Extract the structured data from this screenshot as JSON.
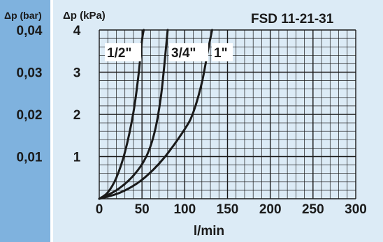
{
  "chart_data": {
    "type": "line",
    "title": "FSD 11-21-31",
    "xlabel": "l/min",
    "ylabel": "Δp (kPa)",
    "secondary_ylabel": "Δp (bar)",
    "xlim": [
      0,
      300
    ],
    "ylim": [
      0,
      4
    ],
    "grid": true,
    "x_ticks": [
      "0",
      "50",
      "100",
      "150",
      "200",
      "250",
      "300"
    ],
    "x_tick_values": [
      0,
      50,
      100,
      150,
      200,
      250,
      300
    ],
    "y_ticks": [
      "1",
      "2",
      "3",
      "4"
    ],
    "y_tick_values": [
      1,
      2,
      3,
      4
    ],
    "secondary_y_ticks": [
      "0,01",
      "0,02",
      "0,03",
      "0,04"
    ],
    "series": [
      {
        "name": "1/2\"",
        "x": [
          0,
          10,
          20,
          30,
          40,
          46,
          50,
          52
        ],
        "y": [
          0,
          0.15,
          0.5,
          1.1,
          2.05,
          2.95,
          3.75,
          4.0
        ]
      },
      {
        "name": "3/4\"",
        "x": [
          0,
          20,
          40,
          55,
          65,
          72,
          77,
          80
        ],
        "y": [
          0,
          0.2,
          0.55,
          1.0,
          1.6,
          2.4,
          3.35,
          4.0
        ]
      },
      {
        "name": "1\"",
        "x": [
          0,
          25,
          50,
          75,
          100,
          110,
          120,
          127,
          132
        ],
        "y": [
          0,
          0.15,
          0.45,
          0.95,
          1.65,
          2.05,
          2.75,
          3.5,
          4.0
        ]
      }
    ]
  },
  "colors": {
    "left_band": "#7fb2de",
    "panel": "#dcebf6",
    "grid": "#1a1a1a",
    "curve": "#1a1a1a"
  }
}
